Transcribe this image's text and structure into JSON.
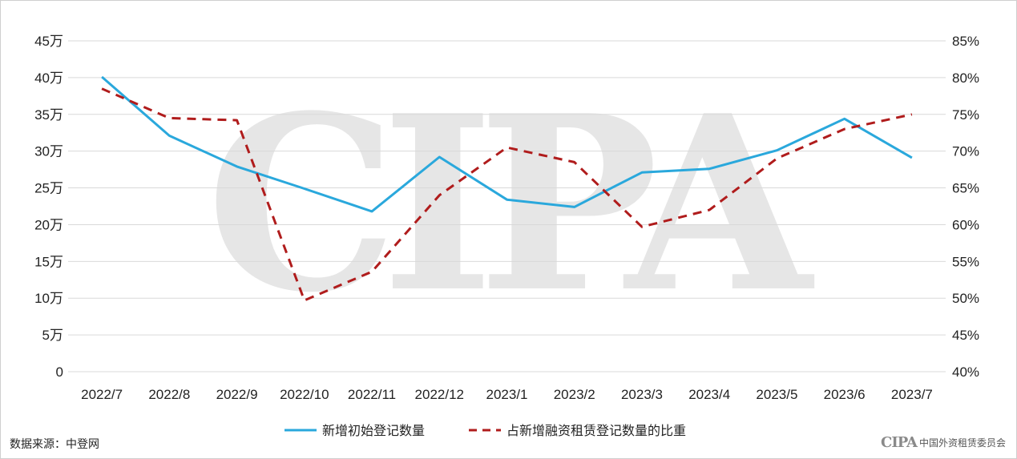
{
  "watermark": "CIPA",
  "source_label": "数据来源：中登网",
  "logo": {
    "mark": "CIPA",
    "text": "中国外资租赁委员会"
  },
  "colors": {
    "series1": "#2aa8dc",
    "series2": "#b01c1c",
    "grid": "#d9d9d9",
    "watermark": "#e6e6e6"
  },
  "chart_data": {
    "type": "line",
    "categories": [
      "2022/7",
      "2022/8",
      "2022/9",
      "2022/10",
      "2022/11",
      "2022/12",
      "2023/1",
      "2023/2",
      "2023/3",
      "2023/4",
      "2023/5",
      "2023/6",
      "2023/7"
    ],
    "y_left": {
      "ylim": [
        0,
        450000
      ],
      "ticks": [
        0,
        50000,
        100000,
        150000,
        200000,
        250000,
        300000,
        350000,
        400000,
        450000
      ],
      "tick_labels": [
        "0",
        "5万",
        "10万",
        "15万",
        "20万",
        "25万",
        "30万",
        "35万",
        "40万",
        "45万"
      ]
    },
    "y_right": {
      "ylim": [
        40,
        85
      ],
      "ticks": [
        40,
        45,
        50,
        55,
        60,
        65,
        70,
        75,
        80,
        85
      ],
      "tick_labels": [
        "40%",
        "45%",
        "50%",
        "55%",
        "60%",
        "65%",
        "70%",
        "75%",
        "80%",
        "85%"
      ]
    },
    "series": [
      {
        "name": "新增初始登记数量",
        "axis": "left",
        "style": "solid",
        "values": [
          401000,
          321000,
          279000,
          249000,
          218000,
          292000,
          234000,
          224000,
          271000,
          276000,
          301000,
          344000,
          291000
        ]
      },
      {
        "name": "占新增融资租赁登记数量的比重",
        "axis": "right",
        "style": "dashed",
        "values": [
          78.5,
          74.5,
          74.2,
          49.7,
          53.6,
          64.0,
          70.5,
          68.5,
          59.7,
          62.0,
          69.0,
          73.0,
          75.0
        ]
      }
    ],
    "grid": true,
    "legend_position": "bottom"
  }
}
